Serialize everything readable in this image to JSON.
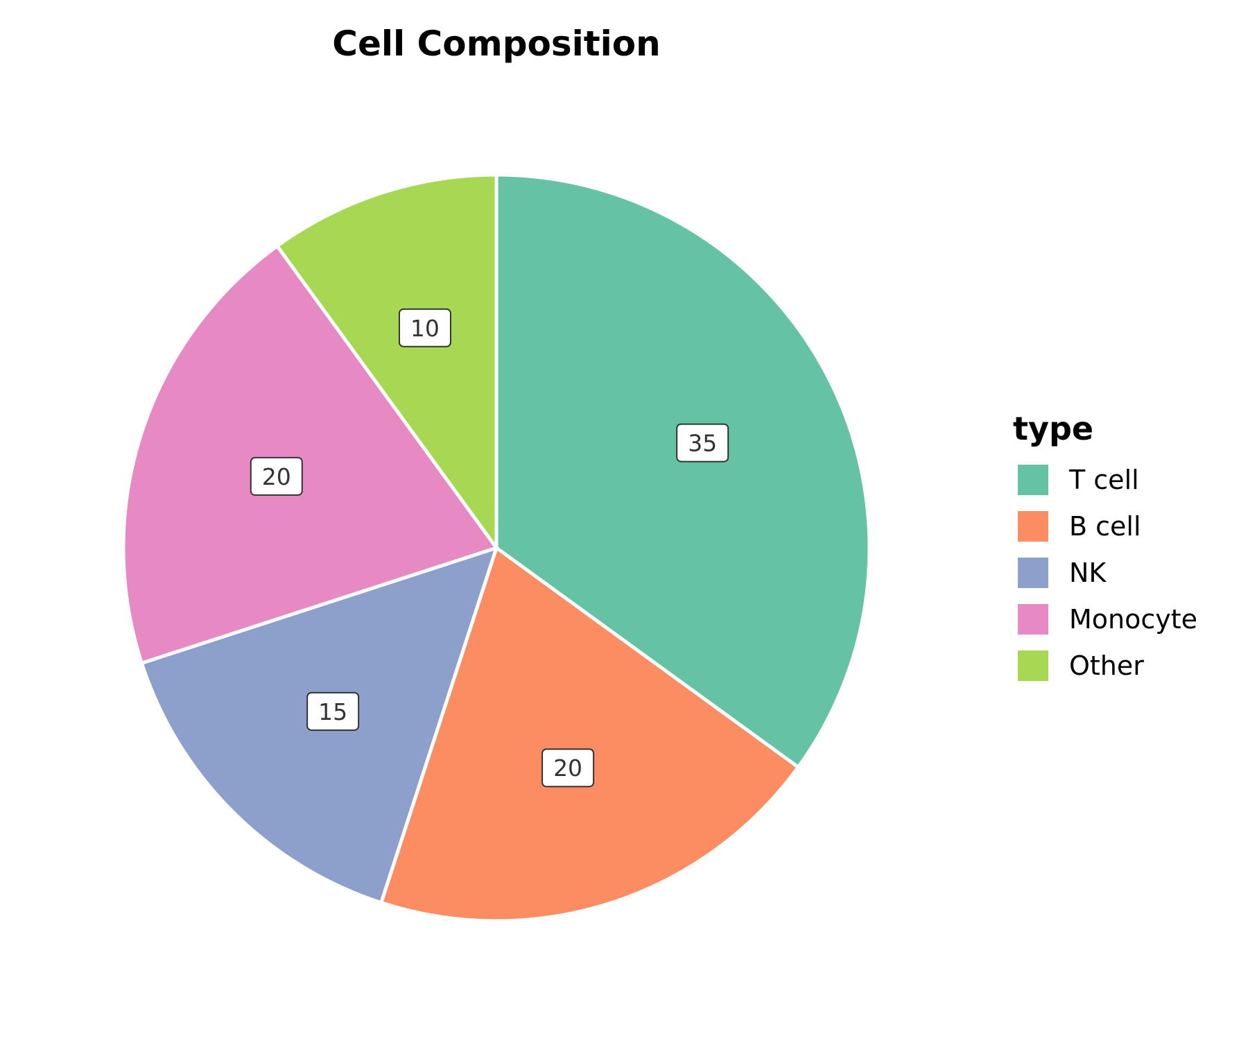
{
  "chart_data": {
    "type": "pie",
    "title": "Cell Composition",
    "legend_title": "type",
    "legend_position": "right",
    "start": "top",
    "direction": "clockwise",
    "categories": [
      "T cell",
      "B cell",
      "NK",
      "Monocyte",
      "Other"
    ],
    "values": [
      35,
      20,
      15,
      20,
      10
    ],
    "colors": [
      "#66c2a5",
      "#fc8d62",
      "#8da0cb",
      "#e78ac3",
      "#a6d854"
    ]
  }
}
